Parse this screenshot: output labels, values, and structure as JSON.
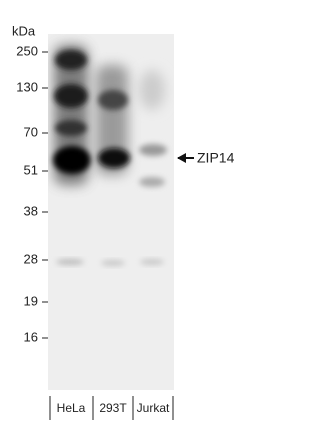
{
  "unit": "kDa",
  "markers": [
    "250",
    "130",
    "70",
    "51",
    "38",
    "28",
    "19",
    "16"
  ],
  "lanes": [
    "HeLa",
    "293T",
    "Jurkat"
  ],
  "target": "ZIP14"
}
